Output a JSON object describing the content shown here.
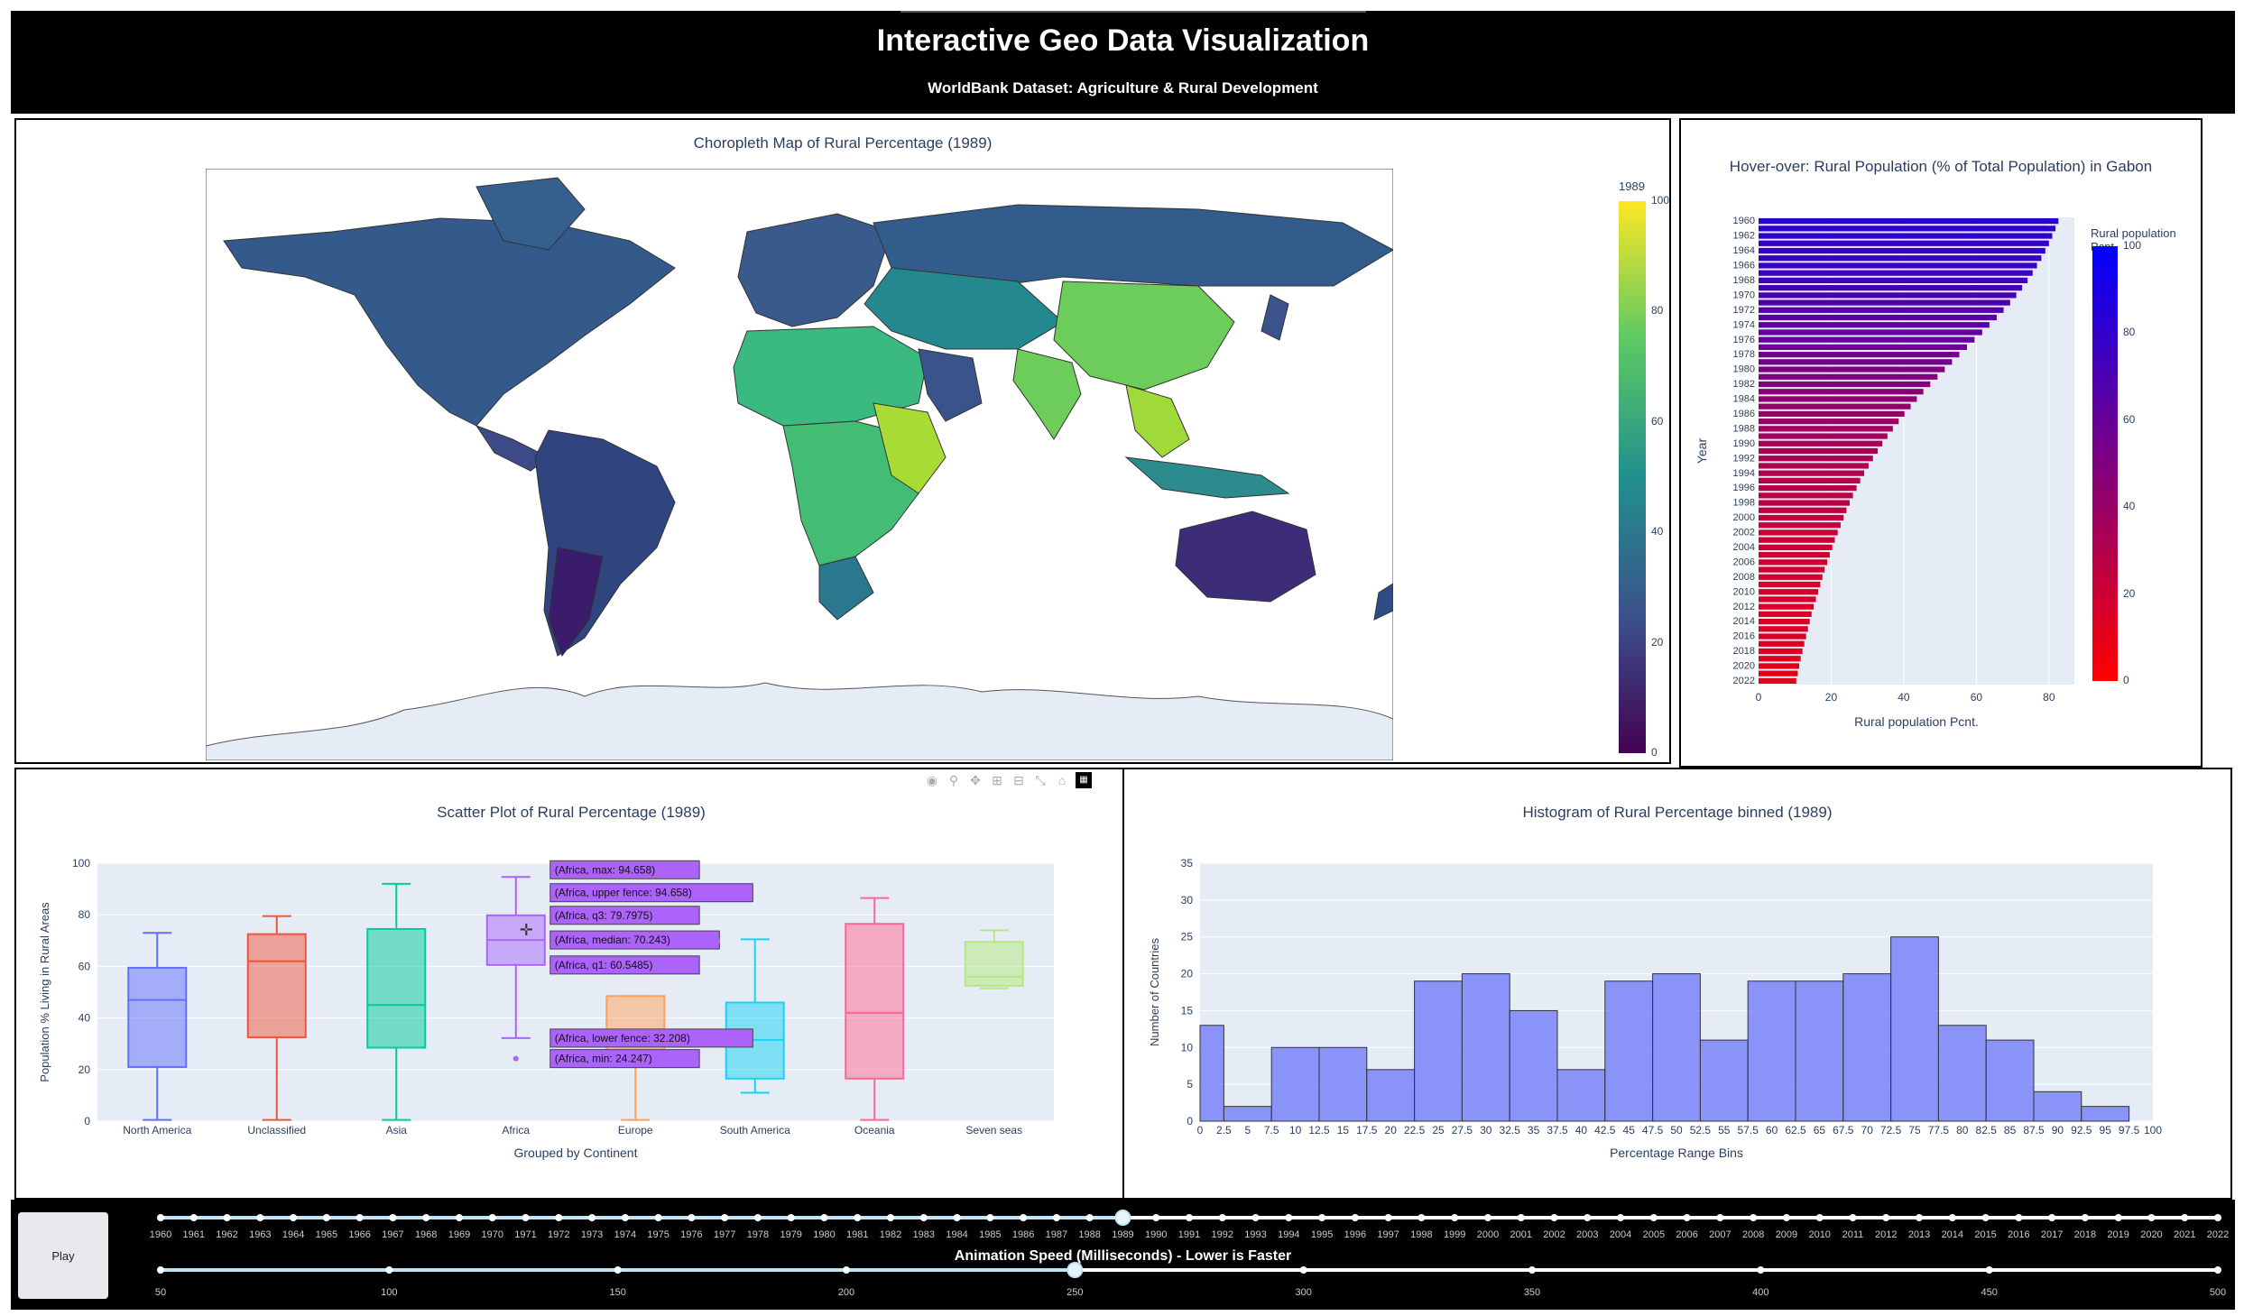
{
  "header": {
    "title": "Interactive Geo Data Visualization",
    "subtitle": "WorldBank Dataset: Agriculture & Rural Development"
  },
  "map": {
    "title": "Choropleth Map of Rural Percentage (1989)",
    "colorbar_title": "1989",
    "colorbar_ticks": [
      "100",
      "80",
      "60",
      "40",
      "20",
      "0"
    ],
    "colors": [
      "#440154",
      "#3b528b",
      "#21908d",
      "#5dc963",
      "#fde725"
    ]
  },
  "gabon": {
    "title": "Hover-over: Rural Population (% of Total Population) in Gabon",
    "colorbar_title": "Rural population Pcnt.",
    "colorbar_ticks": [
      "100",
      "80",
      "60",
      "40",
      "20",
      "0"
    ],
    "xlabel": "Rural population Pcnt.",
    "ylabel": "Year",
    "xticks": [
      "0",
      "20",
      "40",
      "60",
      "80"
    ]
  },
  "scatter": {
    "title": "Scatter Plot of Rural Percentage (1989)",
    "xlabel": "Grouped by Continent",
    "ylabel": "Population % Living in Rural Areas",
    "yticks": [
      "100",
      "80",
      "60",
      "40",
      "20",
      "0"
    ],
    "tooltips": {
      "max": "(Africa, max: 94.658)",
      "upper": "(Africa, upper fence: 94.658)",
      "q3": "(Africa, q3: 79.7975)",
      "median": "(Africa, median: 70.243)",
      "q1": "(Africa, q1: 60.5485)",
      "lower": "(Africa, lower fence: 32.208)",
      "min": "(Africa, min: 24.247)",
      "label": "Africa"
    }
  },
  "histogram": {
    "title": "Histogram of Rural Percentage binned (1989)",
    "xlabel": "Percentage Range Bins",
    "ylabel": "Number of Countries",
    "yticks": [
      "35",
      "30",
      "25",
      "20",
      "15",
      "10",
      "5",
      "0"
    ]
  },
  "footer": {
    "play_label": "Play",
    "speed_label": "Animation Speed (Milliseconds) - Lower is Faster",
    "selected_year": "1989",
    "years": [
      "1960",
      "1961",
      "1962",
      "1963",
      "1964",
      "1965",
      "1966",
      "1967",
      "1968",
      "1969",
      "1970",
      "1971",
      "1972",
      "1973",
      "1974",
      "1975",
      "1976",
      "1977",
      "1978",
      "1979",
      "1980",
      "1981",
      "1982",
      "1983",
      "1984",
      "1985",
      "1986",
      "1987",
      "1988",
      "1989",
      "1990",
      "1991",
      "1992",
      "1993",
      "1994",
      "1995",
      "1996",
      "1997",
      "1998",
      "1999",
      "2000",
      "2001",
      "2002",
      "2003",
      "2004",
      "2005",
      "2006",
      "2007",
      "2008",
      "2009",
      "2010",
      "2011",
      "2012",
      "2013",
      "2014",
      "2015",
      "2016",
      "2017",
      "2018",
      "2019",
      "2020",
      "2021",
      "2022"
    ],
    "speeds": [
      "50",
      "100",
      "150",
      "200",
      "250",
      "300",
      "350",
      "400",
      "450",
      "500"
    ],
    "selected_speed": "250"
  },
  "chart_data": [
    {
      "type": "bar",
      "orientation": "horizontal",
      "title": "Hover-over: Rural Population (% of Total Population) in Gabon",
      "xlabel": "Rural population Pcnt.",
      "ylabel": "Year",
      "xlim": [
        0,
        87
      ],
      "categories": [
        "1960",
        "1961",
        "1962",
        "1963",
        "1964",
        "1965",
        "1966",
        "1967",
        "1968",
        "1969",
        "1970",
        "1971",
        "1972",
        "1973",
        "1974",
        "1975",
        "1976",
        "1977",
        "1978",
        "1979",
        "1980",
        "1981",
        "1982",
        "1983",
        "1984",
        "1985",
        "1986",
        "1987",
        "1988",
        "1989",
        "1990",
        "1991",
        "1992",
        "1993",
        "1994",
        "1995",
        "1996",
        "1997",
        "1998",
        "1999",
        "2000",
        "2001",
        "2002",
        "2003",
        "2004",
        "2005",
        "2006",
        "2007",
        "2008",
        "2009",
        "2010",
        "2011",
        "2012",
        "2013",
        "2014",
        "2015",
        "2016",
        "2017",
        "2018",
        "2019",
        "2020",
        "2021",
        "2022"
      ],
      "values": [
        82.6,
        81.8,
        80.9,
        80,
        79,
        77.9,
        76.7,
        75.5,
        74.1,
        72.6,
        71,
        69.3,
        67.5,
        65.6,
        63.6,
        61.6,
        59.5,
        57.4,
        55.3,
        53.3,
        51.3,
        49.3,
        47.3,
        45.4,
        43.6,
        41.9,
        40.2,
        38.6,
        37,
        35.5,
        34.1,
        32.8,
        31.5,
        30.3,
        29.1,
        28,
        27,
        26,
        25.1,
        24.2,
        23.4,
        22.6,
        21.8,
        21,
        20.3,
        19.6,
        18.9,
        18.2,
        17.6,
        17,
        16.4,
        15.8,
        15.2,
        14.6,
        14.1,
        13.6,
        13.1,
        12.6,
        12.1,
        11.6,
        11.2,
        10.8,
        10.4
      ],
      "colorbar": {
        "title": "Rural population Pcnt.",
        "range": [
          0,
          100
        ],
        "colors": [
          "#ff0000",
          "#0000ff"
        ]
      }
    },
    {
      "type": "box",
      "title": "Scatter Plot of Rural Percentage (1989)",
      "xlabel": "Grouped by Continent",
      "ylabel": "Population % Living in Rural Areas",
      "ylim": [
        0,
        100
      ],
      "grid": true,
      "series": [
        {
          "name": "North America",
          "color": "#636efa",
          "min": 0.5,
          "q1": 21,
          "median": 47,
          "q3": 59.5,
          "max": 73
        },
        {
          "name": "Unclassified",
          "color": "#ef553b",
          "min": 0.5,
          "q1": 32.5,
          "median": 62,
          "q3": 72.5,
          "max": 79.5
        },
        {
          "name": "Asia",
          "color": "#00cc96",
          "min": 0.5,
          "q1": 28.5,
          "median": 45,
          "q3": 74.5,
          "max": 92
        },
        {
          "name": "Africa",
          "color": "#ab63fa",
          "min": 32.208,
          "q1": 60.5485,
          "median": 70.243,
          "q3": 79.7975,
          "max": 94.658,
          "outliers": [
            24.247
          ]
        },
        {
          "name": "Europe",
          "color": "#ffa15a",
          "min": 0.5,
          "q1": 26,
          "median": 33,
          "q3": 48.5,
          "max": 48.5
        },
        {
          "name": "South America",
          "color": "#19d3f3",
          "min": 11,
          "q1": 16.5,
          "median": 31.5,
          "q3": 46,
          "max": 70.5
        },
        {
          "name": "Oceania",
          "color": "#ff6692",
          "min": 0.5,
          "q1": 16.5,
          "median": 42,
          "q3": 76.5,
          "max": 86.5
        },
        {
          "name": "Seven seas",
          "color": "#b6e880",
          "min": 51.5,
          "q1": 52.5,
          "median": 56,
          "q3": 69.5,
          "max": 74
        }
      ]
    },
    {
      "type": "bar",
      "histogram": true,
      "title": "Histogram of Rural Percentage binned (1989)",
      "xlabel": "Percentage Range Bins",
      "ylabel": "Number of Countries",
      "xlim": [
        0,
        100
      ],
      "ylim": [
        0,
        35
      ],
      "color": "#636efa",
      "x_ticks": [
        "0",
        "2.5",
        "5",
        "7.5",
        "10",
        "12.5",
        "15",
        "17.5",
        "20",
        "22.5",
        "25",
        "27.5",
        "30",
        "32.5",
        "35",
        "37.5",
        "40",
        "42.5",
        "45",
        "47.5",
        "50",
        "52.5",
        "55",
        "57.5",
        "60",
        "62.5",
        "65",
        "67.5",
        "70",
        "72.5",
        "75",
        "77.5",
        "80",
        "82.5",
        "85",
        "87.5",
        "90",
        "92.5",
        "95",
        "97.5",
        "100"
      ],
      "bins": [
        [
          0,
          2.5
        ],
        [
          2.5,
          7.5
        ],
        [
          7.5,
          12.5
        ],
        [
          12.5,
          17.5
        ],
        [
          17.5,
          22.5
        ],
        [
          22.5,
          27.5
        ],
        [
          27.5,
          32.5
        ],
        [
          32.5,
          37.5
        ],
        [
          37.5,
          42.5
        ],
        [
          42.5,
          47.5
        ],
        [
          47.5,
          52.5
        ],
        [
          52.5,
          57.5
        ],
        [
          57.5,
          62.5
        ],
        [
          62.5,
          67.5
        ],
        [
          67.5,
          72.5
        ],
        [
          72.5,
          77.5
        ],
        [
          77.5,
          82.5
        ],
        [
          82.5,
          87.5
        ],
        [
          87.5,
          92.5
        ],
        [
          92.5,
          97.5
        ]
      ],
      "values": [
        13,
        2,
        10,
        10,
        7,
        19,
        20,
        15,
        7,
        19,
        20,
        11,
        19,
        19,
        20,
        25,
        13,
        11,
        4,
        2
      ]
    }
  ]
}
